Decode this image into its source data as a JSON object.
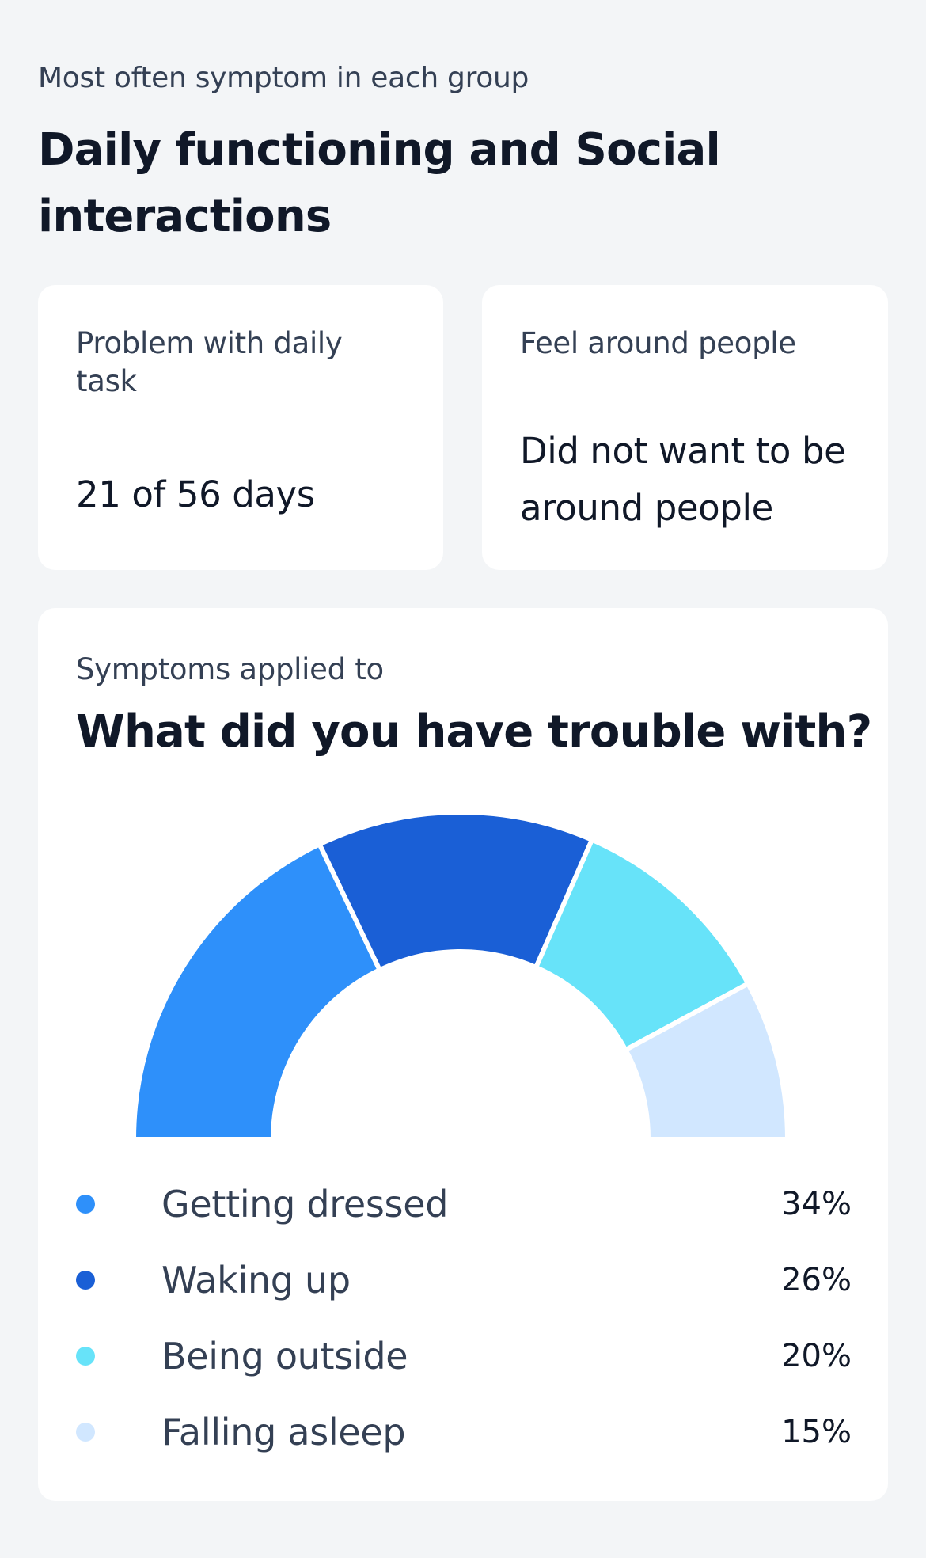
{
  "header": {
    "subtitle": "Most often symptom in each group",
    "title": "Daily functioning and Social interactions"
  },
  "cards": [
    {
      "label": "Problem with daily task",
      "value": "21 of 56 days"
    },
    {
      "label": "Feel around people",
      "value": "Did not want to be around people"
    }
  ],
  "chart_card": {
    "subtitle": "Symptoms applied to",
    "title": "What did you have trouble with?"
  },
  "colors": {
    "getting_dressed": "#2e90fa",
    "waking_up": "#1a5fd6",
    "being_outside": "#67e3f9",
    "falling_asleep": "#d1e7ff"
  },
  "chart_data": {
    "type": "pie",
    "variant": "half-donut",
    "categories": [
      "Getting dressed",
      "Waking up",
      "Being outside",
      "Falling asleep"
    ],
    "values": [
      34,
      26,
      20,
      15
    ],
    "value_labels": [
      "34%",
      "26%",
      "20%",
      "15%"
    ],
    "colors": [
      "#2e90fa",
      "#1a5fd6",
      "#67e3f9",
      "#d1e7ff"
    ]
  }
}
